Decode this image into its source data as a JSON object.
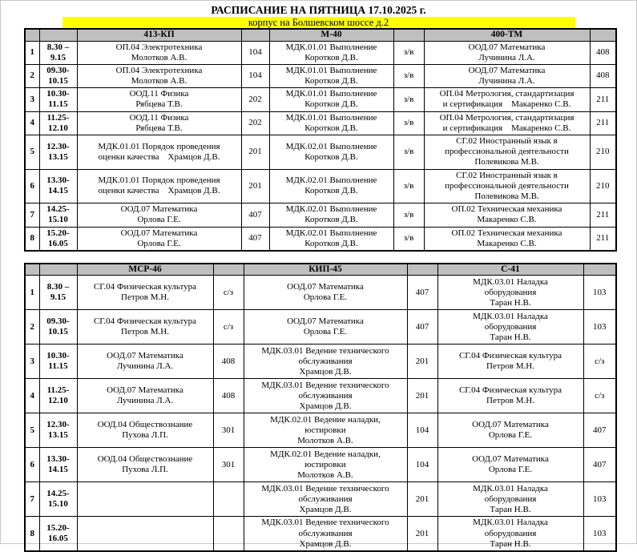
{
  "page": {
    "title": "РАСПИСАНИЕ НА ПЯТНИЦА 17.10.2025 г.",
    "subtitle": "корпус на Болшевском шоссе д.2",
    "colors": {
      "highlight": "#FFFF00",
      "header_bg": "#BFBFBF"
    }
  },
  "tables": [
    {
      "groups": [
        "413-КП",
        "М-40",
        "400-ТМ"
      ],
      "rows": [
        {
          "num": "1",
          "time": "8.30 –\n9.15",
          "cells": [
            {
              "subject": "ОП.04 Электротехника\nМолотков А.В.",
              "room": "104"
            },
            {
              "subject": "МДК.01.01 Выполнение\nКоротков Д.В.",
              "room": "з/в"
            },
            {
              "subject": "ООД.07 Математика\nЛучинина Л.А.",
              "room": "408"
            }
          ]
        },
        {
          "num": "2",
          "time": "09.30-\n10.15",
          "cells": [
            {
              "subject": "ОП.04 Электротехника\nМолотков А.В.",
              "room": "104"
            },
            {
              "subject": "МДК.01.01 Выполнение\nКоротков Д.В.",
              "room": "з/в"
            },
            {
              "subject": "ООД.07 Математика\nЛучинина Л.А.",
              "room": "408"
            }
          ]
        },
        {
          "num": "3",
          "time": "10.30-\n11.15",
          "cells": [
            {
              "subject": "ООД.11 Физика\nРябцева Т.В.",
              "room": "202"
            },
            {
              "subject": "МДК.01.01 Выполнение\nКоротков Д.В.",
              "room": "з/в"
            },
            {
              "subject": "ОП.04 Метрология, стандартизация\nи сертификация    Макаренко С.В.",
              "room": "211"
            }
          ]
        },
        {
          "num": "4",
          "time": "11.25-\n12.10",
          "cells": [
            {
              "subject": "ООД.11 Физика\nРябцева Т.В.",
              "room": "202"
            },
            {
              "subject": "МДК.01.01 Выполнение\nКоротков Д.В.",
              "room": "з/в"
            },
            {
              "subject": "ОП.04 Метрология, стандартизация\nи сертификация    Макаренко С.В.",
              "room": "211"
            }
          ]
        },
        {
          "num": "5",
          "time": "12.30-\n13.15",
          "cells": [
            {
              "subject": "МДК.01.01 Порядок проведения\nоценки качества    Храмцов Д.В.",
              "room": "201"
            },
            {
              "subject": "МДК.02.01 Выполнение\nКоротков Д.В.",
              "room": "з/в"
            },
            {
              "subject": "СГ.02 Иностранный язык в\nпрофессиональной деятельности\nПолевикова М.В.",
              "room": "210"
            }
          ]
        },
        {
          "num": "6",
          "time": "13.30-\n14.15",
          "cells": [
            {
              "subject": "МДК.01.01 Порядок проведения\nоценки качества    Храмцов Д.В.",
              "room": "201"
            },
            {
              "subject": "МДК.02.01 Выполнение\nКоротков Д.В.",
              "room": "з/в"
            },
            {
              "subject": "СГ.02 Иностранный язык в\nпрофессиональной деятельности\nПолевикова М.В.",
              "room": "210"
            }
          ]
        },
        {
          "num": "7",
          "time": "14.25-\n15.10",
          "cells": [
            {
              "subject": "ООД.07 Математика\nОрлова Г.Е.",
              "room": "407"
            },
            {
              "subject": "МДК.02.01 Выполнение\nКоротков Д.В.",
              "room": "з/в"
            },
            {
              "subject": "ОП.02 Техническая механика\nМакаренко С.В.",
              "room": "211"
            }
          ]
        },
        {
          "num": "8",
          "time": "15.20-\n16.05",
          "cells": [
            {
              "subject": "ООД.07 Математика\nОрлова Г.Е.",
              "room": "407"
            },
            {
              "subject": "МДК.02.01 Выполнение\nКоротков Д.В.",
              "room": "з/в"
            },
            {
              "subject": "ОП.02 Техническая механика\nМакаренко С.В.",
              "room": "211"
            }
          ]
        }
      ]
    },
    {
      "groups": [
        "МСР-46",
        "КИП-45",
        "С-41"
      ],
      "rows": [
        {
          "num": "1",
          "time": "8.30 –\n9.15",
          "cells": [
            {
              "subject": "СГ.04 Физическая культура\nПетров М.Н.",
              "room": "с/з"
            },
            {
              "subject": "ООД.07 Математика\nОрлова Г.Е.",
              "room": "407"
            },
            {
              "subject": "МДК.03.01 Наладка\nоборудования\nТаран Н.В.",
              "room": "103"
            }
          ]
        },
        {
          "num": "2",
          "time": "09.30-\n10.15",
          "cells": [
            {
              "subject": "СГ.04 Физическая культура\nПетров М.Н.",
              "room": "с/з"
            },
            {
              "subject": "ООД.07 Математика\nОрлова Г.Е.",
              "room": "407"
            },
            {
              "subject": "МДК.03.01 Наладка\nоборудования\nТаран Н.В.",
              "room": "103"
            }
          ]
        },
        {
          "num": "3",
          "time": "10.30-\n11.15",
          "cells": [
            {
              "subject": "ООД.07 Математика\nЛучинина Л.А.",
              "room": "408"
            },
            {
              "subject": "МДК.03.01 Ведение технического\nобслуживания\nХрамцов Д.В.",
              "room": "201"
            },
            {
              "subject": "СГ.04 Физическая культура\nПетров М.Н.",
              "room": "с/з"
            }
          ]
        },
        {
          "num": "4",
          "time": "11.25-\n12.10",
          "cells": [
            {
              "subject": "ООД.07 Математика\nЛучинина Л.А.",
              "room": "408"
            },
            {
              "subject": "МДК.03.01 Ведение технического\nобслуживания\nХрамцов Д.В.",
              "room": "201"
            },
            {
              "subject": "СГ.04 Физическая культура\nПетров М.Н.",
              "room": "с/з"
            }
          ]
        },
        {
          "num": "5",
          "time": "12.30-\n13.15",
          "cells": [
            {
              "subject": "ООД.04 Обществознание\nПухова Л.П.",
              "room": "301"
            },
            {
              "subject": "МДК.02.01 Ведение наладки,\nюстировки\nМолотков А.В.",
              "room": "104"
            },
            {
              "subject": "ООД.07 Математика\nОрлова Г.Е.",
              "room": "407"
            }
          ]
        },
        {
          "num": "6",
          "time": "13.30-\n14.15",
          "cells": [
            {
              "subject": "ООД.04 Обществознание\nПухова Л.П.",
              "room": "301"
            },
            {
              "subject": "МДК.02.01 Ведение наладки,\nюстировки\nМолотков А.В.",
              "room": "104"
            },
            {
              "subject": "ООД.07 Математика\nОрлова Г.Е.",
              "room": "407"
            }
          ]
        },
        {
          "num": "7",
          "time": "14.25-\n15.10",
          "cells": [
            {
              "subject": "",
              "room": ""
            },
            {
              "subject": "МДК.03.01 Ведение технического\nобслуживания\nХрамцов Д.В.",
              "room": "201"
            },
            {
              "subject": "МДК.03.01 Наладка\nоборудования\nТаран Н.В.",
              "room": "103"
            }
          ]
        },
        {
          "num": "8",
          "time": "15.20-\n16.05",
          "cells": [
            {
              "subject": "",
              "room": ""
            },
            {
              "subject": "МДК.03.01 Ведение технического\nобслуживания\nХрамцов Д.В.",
              "room": "201"
            },
            {
              "subject": "МДК.03.01 Наладка\nоборудования\nТаран Н.В.",
              "room": "103"
            }
          ]
        }
      ]
    }
  ]
}
